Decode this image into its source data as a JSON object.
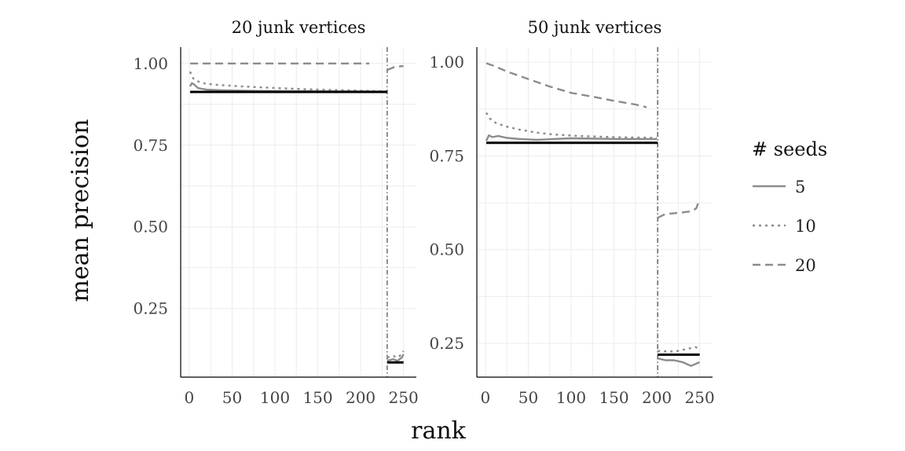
{
  "chart_data": {
    "type": "line",
    "xlabel": "rank",
    "ylabel": "mean precision",
    "grid": true,
    "legend": {
      "title": "# seeds",
      "placement": "right",
      "items": [
        {
          "label": "5",
          "style": "solid"
        },
        {
          "label": "10",
          "style": "dotted"
        },
        {
          "label": "20",
          "style": "dashed"
        }
      ]
    },
    "colors": {
      "series": "#8c8c8c",
      "reference": "#000000",
      "grid": "#ececec"
    },
    "panels": [
      {
        "title": "20 junk vertices",
        "xlim": [
          -10,
          265
        ],
        "ylim": [
          0.04,
          1.05
        ],
        "xticks": [
          0,
          50,
          100,
          150,
          200,
          250
        ],
        "xtick_labels": [
          "0",
          "50",
          "100",
          "150",
          "200",
          "250"
        ],
        "yticks": [
          0.25,
          0.5,
          0.75,
          1.0
        ],
        "ytick_labels": [
          "0.25",
          "0.50",
          "0.75",
          "1.00"
        ],
        "vline_x": 231,
        "reference_lines": [
          {
            "x": [
              1,
              231
            ],
            "y": 0.913
          },
          {
            "x": [
              231,
              250
            ],
            "y": 0.085
          }
        ],
        "series": [
          {
            "seeds": "5",
            "style": "solid",
            "segments": [
              [
                [
                  1,
                  0.93
                ],
                [
                  3,
                  0.94
                ],
                [
                  6,
                  0.935
                ],
                [
                  10,
                  0.925
                ],
                [
                  20,
                  0.92
                ],
                [
                  40,
                  0.918
                ],
                [
                  80,
                  0.916
                ],
                [
                  150,
                  0.915
                ],
                [
                  230,
                  0.914
                ]
              ],
              [
                [
                  231,
                  0.09
                ],
                [
                  238,
                  0.095
                ],
                [
                  243,
                  0.09
                ],
                [
                  248,
                  0.1
                ],
                [
                  250,
                  0.11
                ]
              ]
            ]
          },
          {
            "seeds": "10",
            "style": "dotted",
            "segments": [
              [
                [
                  1,
                  0.975
                ],
                [
                  3,
                  0.96
                ],
                [
                  6,
                  0.95
                ],
                [
                  15,
                  0.94
                ],
                [
                  30,
                  0.935
                ],
                [
                  60,
                  0.93
                ],
                [
                  100,
                  0.925
                ],
                [
                  150,
                  0.92
                ],
                [
                  230,
                  0.915
                ]
              ],
              [
                [
                  231,
                  0.1
                ],
                [
                  238,
                  0.105
                ],
                [
                  243,
                  0.1
                ],
                [
                  248,
                  0.11
                ],
                [
                  250,
                  0.12
                ]
              ]
            ]
          },
          {
            "seeds": "20",
            "style": "dashed",
            "segments": [
              [
                [
                  1,
                  1.0
                ],
                [
                  210,
                  1.0
                ]
              ],
              [
                [
                  231,
                  0.98
                ],
                [
                  240,
                  0.99
                ],
                [
                  250,
                  0.992
                ]
              ]
            ]
          }
        ]
      },
      {
        "title": "50 junk vertices",
        "xlim": [
          -10,
          265
        ],
        "ylim": [
          0.16,
          1.04
        ],
        "xticks": [
          0,
          50,
          100,
          150,
          200,
          250
        ],
        "xtick_labels": [
          "0",
          "50",
          "100",
          "150",
          "200",
          "250"
        ],
        "yticks": [
          0.25,
          0.5,
          0.75,
          1.0
        ],
        "ytick_labels": [
          "0.25",
          "0.50",
          "0.75",
          "1.00"
        ],
        "vline_x": 201,
        "reference_lines": [
          {
            "x": [
              1,
              201
            ],
            "y": 0.785
          },
          {
            "x": [
              201,
              250
            ],
            "y": 0.22
          }
        ],
        "series": [
          {
            "seeds": "5",
            "style": "solid",
            "segments": [
              [
                [
                  1,
                  0.79
                ],
                [
                  4,
                  0.805
                ],
                [
                  8,
                  0.8
                ],
                [
                  15,
                  0.803
                ],
                [
                  25,
                  0.798
                ],
                [
                  40,
                  0.795
                ],
                [
                  60,
                  0.793
                ],
                [
                  80,
                  0.795
                ],
                [
                  100,
                  0.797
                ],
                [
                  130,
                  0.796
                ],
                [
                  160,
                  0.795
                ],
                [
                  200,
                  0.795
                ]
              ],
              [
                [
                  201,
                  0.21
                ],
                [
                  210,
                  0.205
                ],
                [
                  220,
                  0.205
                ],
                [
                  230,
                  0.2
                ],
                [
                  240,
                  0.19
                ],
                [
                  245,
                  0.195
                ],
                [
                  250,
                  0.2
                ]
              ]
            ]
          },
          {
            "seeds": "10",
            "style": "dotted",
            "segments": [
              [
                [
                  1,
                  0.865
                ],
                [
                  5,
                  0.85
                ],
                [
                  12,
                  0.838
                ],
                [
                  25,
                  0.828
                ],
                [
                  40,
                  0.82
                ],
                [
                  60,
                  0.812
                ],
                [
                  80,
                  0.807
                ],
                [
                  110,
                  0.803
                ],
                [
                  150,
                  0.8
                ],
                [
                  200,
                  0.798
                ]
              ],
              [
                [
                  201,
                  0.23
                ],
                [
                  215,
                  0.228
                ],
                [
                  225,
                  0.23
                ],
                [
                  235,
                  0.235
                ],
                [
                  245,
                  0.24
                ],
                [
                  250,
                  0.235
                ]
              ]
            ]
          },
          {
            "seeds": "20",
            "style": "dashed",
            "segments": [
              [
                [
                  1,
                  0.997
                ],
                [
                  10,
                  0.99
                ],
                [
                  25,
                  0.975
                ],
                [
                  50,
                  0.955
                ],
                [
                  75,
                  0.935
                ],
                [
                  100,
                  0.918
                ],
                [
                  125,
                  0.908
                ],
                [
                  150,
                  0.897
                ],
                [
                  175,
                  0.887
                ],
                [
                  188,
                  0.88
                ]
              ],
              [
                [
                  201,
                  0.585
                ],
                [
                  210,
                  0.595
                ],
                [
                  225,
                  0.598
                ],
                [
                  240,
                  0.602
                ],
                [
                  246,
                  0.61
                ],
                [
                  250,
                  0.635
                ]
              ]
            ]
          }
        ]
      }
    ]
  }
}
